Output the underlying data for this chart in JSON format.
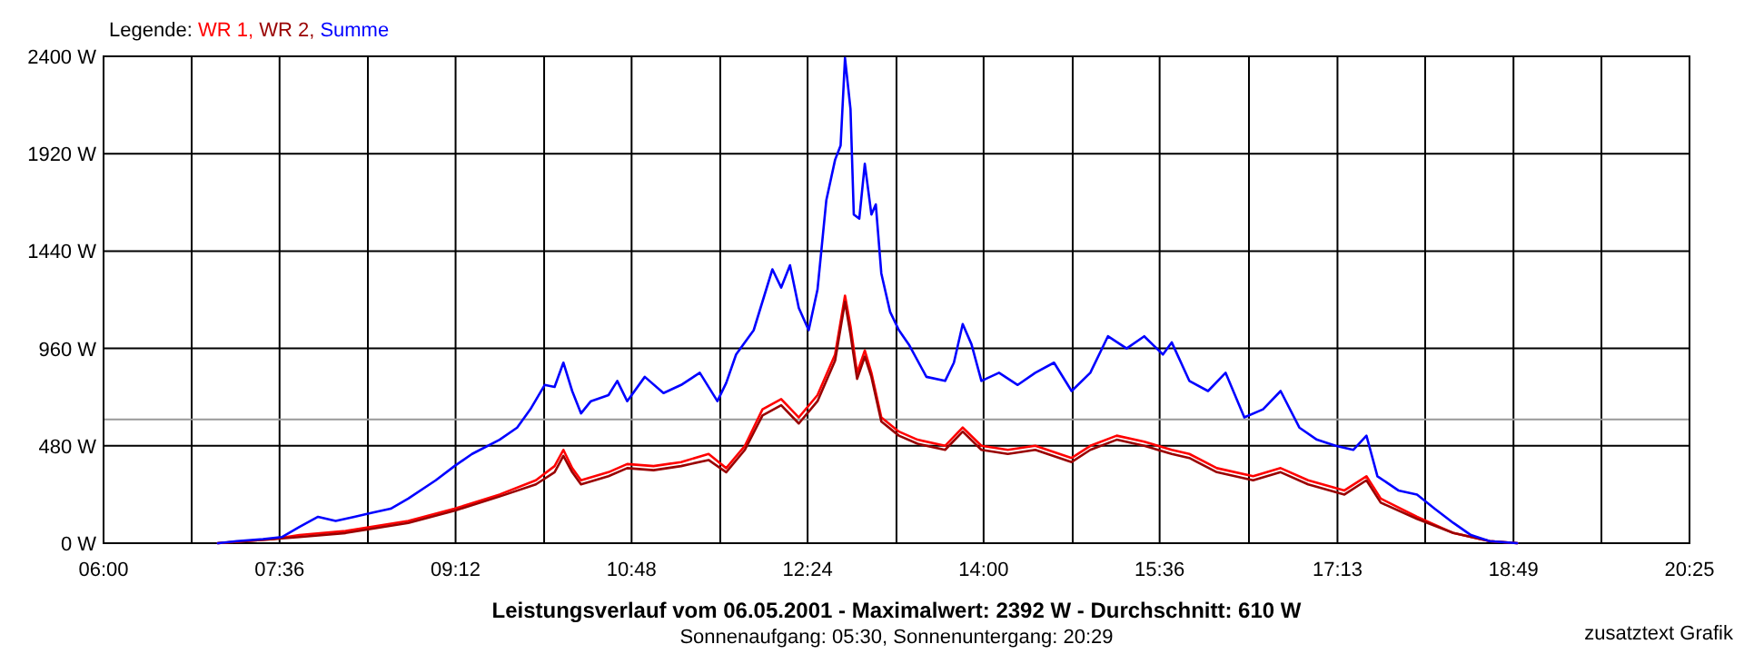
{
  "chart_data": {
    "type": "line",
    "title": "Leistungsverlauf vom 06.05.2001 - Maximalwert: 2392 W - Durchschnitt: 610 W",
    "subtitle": "Sonnenaufgang: 05:30, Sonnenuntergang: 20:29",
    "annotations": [
      "zusatztext Grafik"
    ],
    "legend_title": "Legende:",
    "legend": "top left",
    "grid": true,
    "xlim": [
      6,
      20.4167
    ],
    "ylim": [
      0,
      2400
    ],
    "xticks": [
      {
        "value": 6,
        "label": "06:00"
      },
      {
        "value": 6.801,
        "label": null
      },
      {
        "value": 7.6,
        "label": "07:36"
      },
      {
        "value": 8.403,
        "label": null
      },
      {
        "value": 9.2,
        "label": "09:12"
      },
      {
        "value": 10.005,
        "label": null
      },
      {
        "value": 10.8,
        "label": "10:48"
      },
      {
        "value": 11.606,
        "label": null
      },
      {
        "value": 12.4,
        "label": "12:24"
      },
      {
        "value": 13.208,
        "label": null
      },
      {
        "value": 14,
        "label": "14:00"
      },
      {
        "value": 14.81,
        "label": null
      },
      {
        "value": 15.6,
        "label": "15:36"
      },
      {
        "value": 16.412,
        "label": null
      },
      {
        "value": 17.2167,
        "label": "17:13"
      },
      {
        "value": 18.014,
        "label": null
      },
      {
        "value": 18.8167,
        "label": "18:49"
      },
      {
        "value": 19.616,
        "label": null
      },
      {
        "value": 20.4167,
        "label": "20:25"
      }
    ],
    "yticks": [
      {
        "value": 0,
        "label": "0 W"
      },
      {
        "value": 480,
        "label": "480 W"
      },
      {
        "value": 960,
        "label": "960 W"
      },
      {
        "value": 1440,
        "label": "1440 W"
      },
      {
        "value": 1920,
        "label": "1920 W"
      },
      {
        "value": 2400,
        "label": "2400 W"
      }
    ],
    "ref_lines": [
      {
        "axis": "y",
        "value": 610,
        "color": "#999999"
      }
    ],
    "series": [
      {
        "name": "WR 1,",
        "color": "#ff0000",
        "x": [
          7.04,
          7.54,
          7.78,
          8.2,
          8.77,
          9.19,
          9.6,
          9.93,
          10.1,
          10.18,
          10.26,
          10.34,
          10.59,
          10.76,
          11.0,
          11.25,
          11.5,
          11.66,
          11.83,
          11.99,
          12.16,
          12.32,
          12.49,
          12.65,
          12.74,
          12.79,
          12.85,
          12.92,
          12.98,
          13.07,
          13.23,
          13.4,
          13.65,
          13.81,
          13.98,
          14.22,
          14.47,
          14.8,
          14.97,
          15.21,
          15.46,
          15.71,
          15.87,
          16.12,
          16.45,
          16.7,
          16.95,
          17.28,
          17.48,
          17.61,
          17.94,
          18.27,
          18.6,
          18.85
        ],
        "values": [
          0,
          20,
          40,
          60,
          110,
          170,
          240,
          310,
          380,
          460,
          370,
          310,
          350,
          390,
          380,
          400,
          440,
          370,
          480,
          660,
          710,
          620,
          730,
          930,
          1220,
          1070,
          840,
          950,
          840,
          620,
          550,
          510,
          480,
          570,
          480,
          460,
          480,
          420,
          480,
          530,
          500,
          460,
          440,
          370,
          330,
          370,
          310,
          260,
          330,
          220,
          130,
          50,
          10,
          0
        ]
      },
      {
        "name": "WR 2,",
        "color": "#990000",
        "x": [
          7.04,
          7.54,
          7.78,
          8.2,
          8.77,
          9.19,
          9.6,
          9.93,
          10.1,
          10.18,
          10.26,
          10.34,
          10.59,
          10.76,
          11.0,
          11.25,
          11.5,
          11.66,
          11.83,
          11.99,
          12.16,
          12.32,
          12.49,
          12.65,
          12.74,
          12.79,
          12.85,
          12.92,
          12.98,
          13.07,
          13.23,
          13.4,
          13.65,
          13.81,
          13.98,
          14.22,
          14.47,
          14.8,
          14.97,
          15.21,
          15.46,
          15.71,
          15.87,
          16.12,
          16.45,
          16.7,
          16.95,
          17.28,
          17.48,
          17.61,
          17.94,
          18.27,
          18.6,
          18.85
        ],
        "values": [
          0,
          20,
          30,
          50,
          100,
          160,
          230,
          290,
          350,
          430,
          350,
          290,
          330,
          370,
          360,
          380,
          410,
          350,
          460,
          630,
          680,
          590,
          700,
          900,
          1190,
          1030,
          810,
          920,
          820,
          600,
          530,
          490,
          460,
          550,
          460,
          440,
          460,
          400,
          460,
          510,
          480,
          440,
          420,
          350,
          310,
          350,
          290,
          240,
          310,
          200,
          120,
          50,
          10,
          0
        ]
      },
      {
        "name": "Summe",
        "color": "#0000ff",
        "x": [
          7.04,
          7.21,
          7.45,
          7.62,
          7.78,
          7.95,
          8.11,
          8.28,
          8.44,
          8.61,
          8.77,
          9.02,
          9.19,
          9.35,
          9.6,
          9.76,
          9.88,
          10.01,
          10.1,
          10.18,
          10.26,
          10.34,
          10.43,
          10.59,
          10.67,
          10.76,
          10.92,
          11.09,
          11.25,
          11.42,
          11.58,
          11.66,
          11.75,
          11.91,
          12.08,
          12.16,
          12.24,
          12.32,
          12.41,
          12.49,
          12.57,
          12.65,
          12.7,
          12.74,
          12.79,
          12.82,
          12.87,
          12.92,
          12.98,
          13.02,
          13.07,
          13.15,
          13.23,
          13.32,
          13.48,
          13.65,
          13.73,
          13.81,
          13.89,
          13.98,
          14.14,
          14.31,
          14.47,
          14.64,
          14.8,
          14.97,
          15.13,
          15.3,
          15.46,
          15.63,
          15.71,
          15.87,
          16.04,
          16.2,
          16.37,
          16.54,
          16.7,
          16.87,
          17.03,
          17.2,
          17.36,
          17.48,
          17.58,
          17.77,
          17.94,
          18.1,
          18.27,
          18.43,
          18.6,
          18.85
        ],
        "values": [
          0,
          10,
          20,
          30,
          80,
          130,
          110,
          130,
          150,
          170,
          220,
          310,
          380,
          440,
          510,
          570,
          660,
          780,
          770,
          890,
          750,
          640,
          700,
          730,
          800,
          700,
          820,
          740,
          780,
          840,
          700,
          790,
          930,
          1050,
          1350,
          1260,
          1370,
          1160,
          1050,
          1250,
          1690,
          1890,
          1960,
          2392,
          2140,
          1620,
          1600,
          1870,
          1620,
          1670,
          1330,
          1140,
          1050,
          980,
          820,
          800,
          890,
          1080,
          980,
          800,
          840,
          780,
          840,
          890,
          750,
          840,
          1020,
          960,
          1020,
          930,
          990,
          800,
          750,
          840,
          620,
          660,
          750,
          570,
          510,
          480,
          460,
          530,
          330,
          260,
          240,
          170,
          100,
          40,
          10,
          0
        ]
      }
    ]
  }
}
